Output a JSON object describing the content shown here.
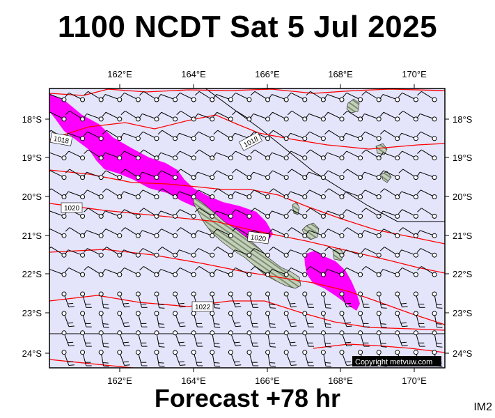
{
  "header": {
    "title": "1100 NCDT Sat 5 Jul 2025"
  },
  "footer": {
    "forecast": "Forecast +78 hr",
    "code": "IM2"
  },
  "map": {
    "lon_labels": [
      "162°E",
      "164°E",
      "166°E",
      "168°E",
      "170°E"
    ],
    "lat_labels": [
      "18°S",
      "19°S",
      "20°S",
      "21°S",
      "22°S",
      "23°S",
      "24°S"
    ],
    "isobar_labels": [
      "1018",
      "1018",
      "1020",
      "1020",
      "1022"
    ],
    "copyright": "Copyright metvuw.com",
    "colors": {
      "ocean": "#e4e4fb",
      "isobar": "#ff0000",
      "rain": "#ff00ff",
      "land": "#b6c4ac",
      "frame": "#000000"
    },
    "wind_barbs": "light winds, mostly westerly flow with stronger southerly barbs south of 22°S"
  }
}
